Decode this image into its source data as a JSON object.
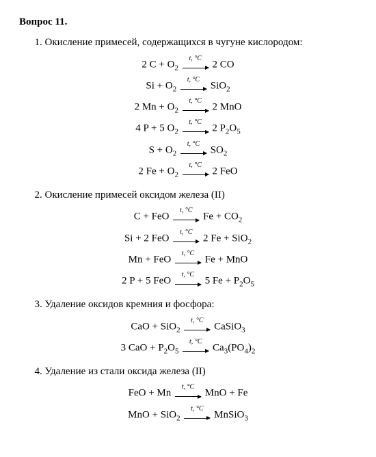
{
  "title": "Вопрос 11.",
  "p1": "1. Окисление примесей, содержащихся в чугуне кислородом:",
  "arrow": "t, °C",
  "s1": {
    "e1L": "2 C + O",
    "e1R": "2 CO",
    "e2L": "Si + O",
    "e2R": "SiO",
    "e3L": "2 Mn + O",
    "e3R": "2 MnO",
    "e4L": "4 P + 5 O",
    "e4R": "2 P",
    "e5L": "S + O",
    "e5R": "SO",
    "e6L": "2 Fe + O",
    "e6R": "2 FeO"
  },
  "p2": "2. Окисление примесей оксидом железа (II)",
  "s2": {
    "e1L": "C + FeO",
    "e1R": "Fe + CO",
    "e2L": "Si + 2 FeO",
    "e2R": "2 Fe + SiO",
    "e3L": "Mn + FeO",
    "e3R": "Fe + MnO",
    "e4L": "2 P + 5 FeO",
    "e4R": "5 Fe + P"
  },
  "p3": "3. Удаление оксидов кремния и фосфора:",
  "s3": {
    "e1L": "CaO + SiO",
    "e1R": "CaSiO",
    "e2L": "3 CaO + P",
    "e2R": "Ca"
  },
  "p4": "4. Удаление из стали оксида железа (II)",
  "s4": {
    "e1L": "FeO + Mn",
    "e1R": "MnO + Fe",
    "e2L": "MnO + SiO",
    "e2R": "MnSiO"
  }
}
